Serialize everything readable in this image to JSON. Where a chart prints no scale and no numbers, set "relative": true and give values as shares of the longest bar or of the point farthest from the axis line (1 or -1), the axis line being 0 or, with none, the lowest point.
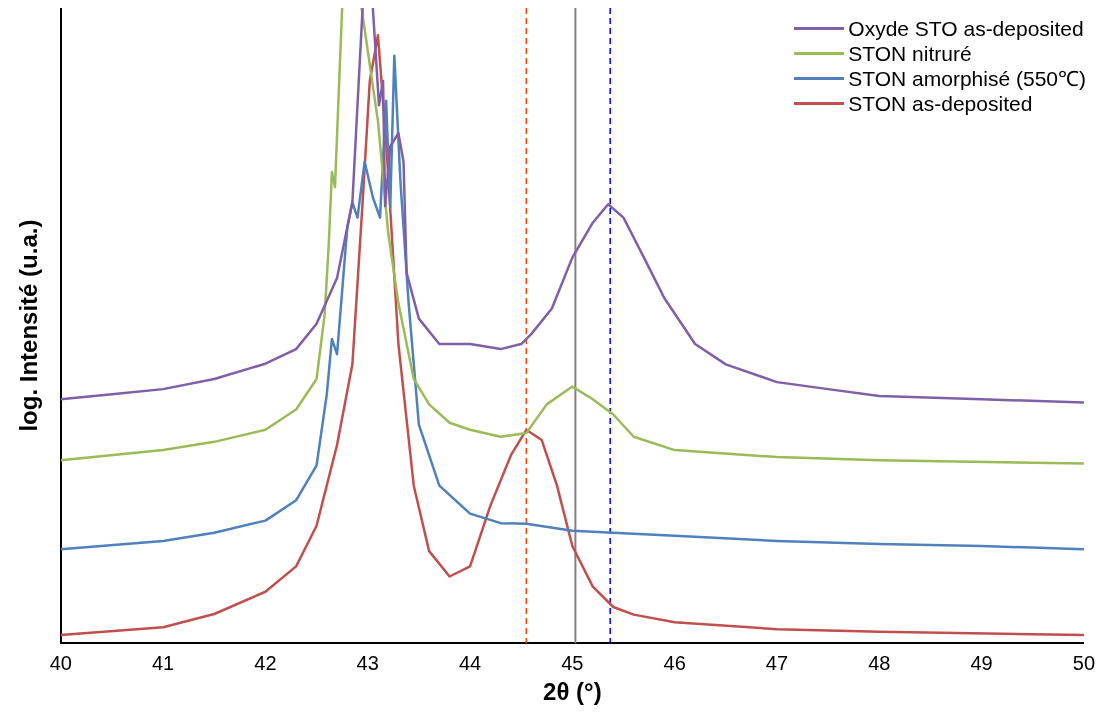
{
  "chart_data": {
    "type": "line",
    "xlabel": "2θ (°)",
    "ylabel": "log. Intensité (u.a.)",
    "relative": true,
    "xlim": [
      40,
      50
    ],
    "xticks": [
      40,
      41,
      42,
      43,
      44,
      45,
      46,
      47,
      48,
      49,
      50
    ],
    "grid": false,
    "legend": "top right",
    "marker": "none",
    "line_style": "solid",
    "series": [
      {
        "name": "Oxyde STO as-deposited",
        "color": "#7f60a8",
        "x": [
          40,
          40.5,
          41,
          41.5,
          42,
          42.3,
          42.5,
          42.7,
          42.85,
          42.95,
          43.0,
          43.05,
          43.11,
          43.15,
          43.17,
          43.22,
          43.3,
          43.35,
          43.38,
          43.5,
          43.7,
          44.0,
          44.3,
          44.5,
          44.6,
          44.8,
          45.0,
          45.2,
          45.35,
          45.5,
          45.7,
          45.9,
          46.2,
          46.5,
          47,
          47.5,
          48,
          49,
          50
        ],
        "values": [
          0.384,
          0.392,
          0.4,
          0.416,
          0.44,
          0.463,
          0.503,
          0.575,
          0.694,
          1,
          null,
          1,
          0.847,
          0.885,
          0.688,
          0.782,
          0.803,
          0.758,
          0.583,
          0.511,
          0.471,
          0.471,
          0.463,
          0.471,
          0.487,
          0.527,
          0.607,
          0.662,
          0.691,
          0.67,
          0.607,
          0.543,
          0.471,
          0.439,
          0.411,
          0.4,
          0.389,
          0.384,
          0.379
        ]
      },
      {
        "name": "STON nitruré",
        "color": "#9bbb59",
        "x": [
          40,
          41,
          41.5,
          42,
          42.3,
          42.5,
          42.58,
          42.62,
          42.65,
          42.68,
          42.75,
          42.85,
          42.94,
          43.1,
          43.2,
          43.3,
          43.45,
          43.6,
          43.8,
          44.0,
          44.3,
          44.55,
          44.75,
          45.0,
          45.2,
          45.4,
          45.6,
          46,
          47,
          48,
          50
        ],
        "values": [
          0.288,
          0.304,
          0.317,
          0.336,
          0.368,
          0.416,
          0.519,
          0.631,
          0.742,
          0.718,
          1,
          null,
          1,
          0.822,
          0.646,
          0.535,
          0.416,
          0.376,
          0.347,
          0.336,
          0.325,
          0.331,
          0.376,
          0.404,
          0.384,
          0.36,
          0.325,
          0.304,
          0.293,
          0.288,
          0.283
        ]
      },
      {
        "name": "STON amorphisé (550℃)",
        "color": "#4f81bd",
        "x": [
          40,
          41,
          41.5,
          42,
          42.3,
          42.5,
          42.6,
          42.65,
          42.7,
          42.8,
          42.85,
          42.9,
          42.97,
          43.05,
          43.12,
          43.18,
          43.22,
          43.26,
          43.32,
          43.4,
          43.5,
          43.7,
          44,
          44.3,
          44.55,
          45,
          46,
          47,
          48,
          49,
          50
        ],
        "values": [
          0.148,
          0.161,
          0.174,
          0.193,
          0.225,
          0.28,
          0.392,
          0.479,
          0.455,
          0.654,
          0.694,
          0.67,
          0.758,
          0.702,
          0.67,
          0.854,
          0.686,
          0.925,
          0.726,
          0.535,
          0.344,
          0.248,
          0.204,
          0.189,
          0.188,
          0.177,
          0.169,
          0.161,
          0.156,
          0.153,
          0.148
        ]
      },
      {
        "name": "STON as-deposited",
        "color": "#c0504d",
        "x": [
          40,
          41,
          41.5,
          42,
          42.3,
          42.5,
          42.7,
          42.85,
          42.95,
          43.02,
          43.1,
          43.18,
          43.3,
          43.45,
          43.6,
          43.8,
          44.0,
          44.2,
          44.4,
          44.55,
          44.7,
          44.85,
          45.0,
          45.2,
          45.4,
          45.6,
          46,
          47,
          48,
          50
        ],
        "values": [
          0.013,
          0.025,
          0.046,
          0.081,
          0.121,
          0.185,
          0.312,
          0.439,
          0.694,
          0.885,
          0.957,
          0.79,
          0.471,
          0.248,
          0.145,
          0.105,
          0.121,
          0.217,
          0.296,
          0.336,
          0.32,
          0.248,
          0.153,
          0.089,
          0.057,
          0.045,
          0.033,
          0.022,
          0.018,
          0.013
        ]
      }
    ],
    "ref_lines": [
      {
        "axis": "x",
        "value": 44.55,
        "color": "#ff4500",
        "line_style": "dashed"
      },
      {
        "axis": "x",
        "value": 45.03,
        "color": "#808080",
        "line_style": "solid"
      },
      {
        "axis": "x",
        "value": 45.37,
        "color": "#0000ff",
        "line_style": "dashed"
      }
    ]
  }
}
